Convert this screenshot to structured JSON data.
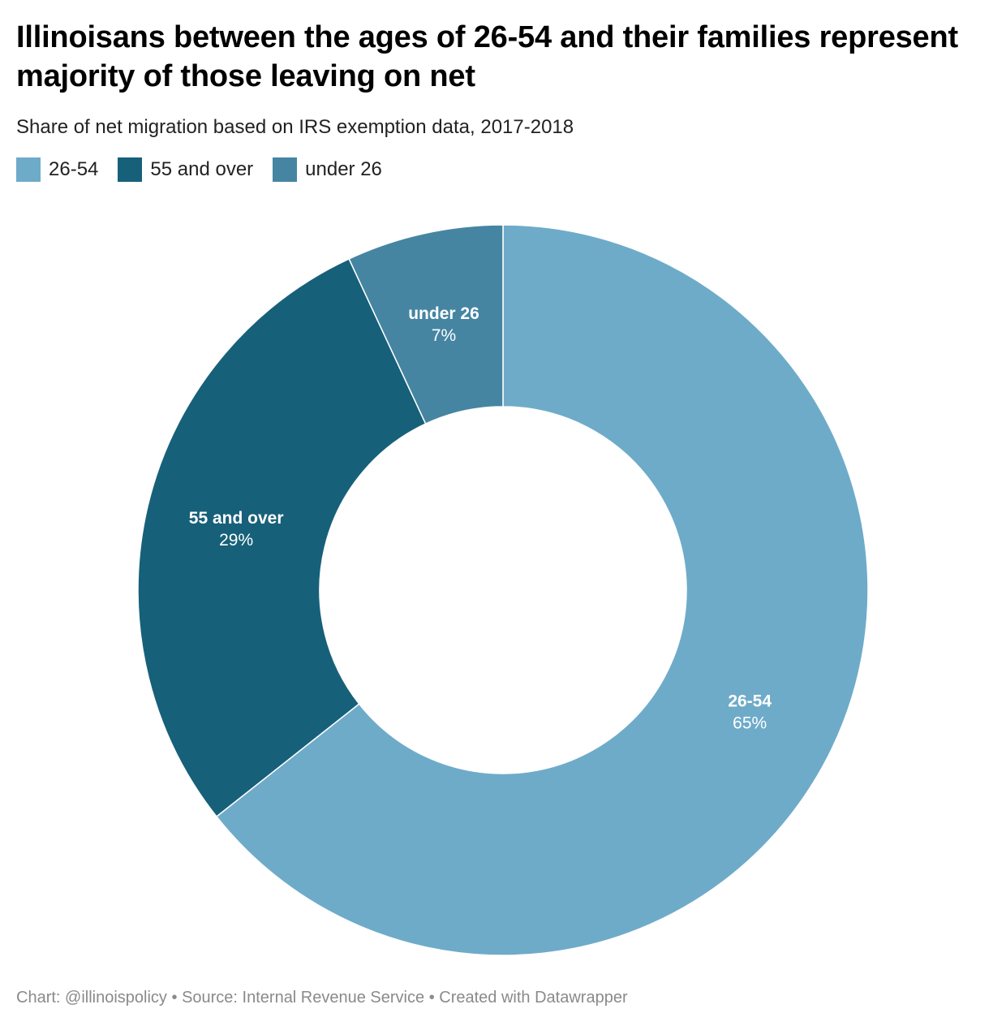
{
  "title": "Illinoisans between the ages of 26-54 and their families represent majority of those leaving on net",
  "subtitle": "Share of net migration based on IRS exemption data, 2017-2018",
  "footer": {
    "chart_credit": "Chart: @illinoispolicy",
    "separator": "•",
    "source": "Source: Internal Revenue Service",
    "created_with": "Created with Datawrapper"
  },
  "chart_data": {
    "type": "pie",
    "donut": true,
    "title": "Illinoisans between the ages of 26-54 and their families represent majority of those leaving on net",
    "subtitle": "Share of net migration based on IRS exemption data, 2017-2018",
    "legend_position": "top-left",
    "categories": [
      "26-54",
      "55 and over",
      "under 26"
    ],
    "values": [
      65,
      29,
      7
    ],
    "value_labels": [
      "65%",
      "29%",
      "7%"
    ],
    "colors": [
      "#6eabc9",
      "#17607a",
      "#4585a2"
    ]
  }
}
